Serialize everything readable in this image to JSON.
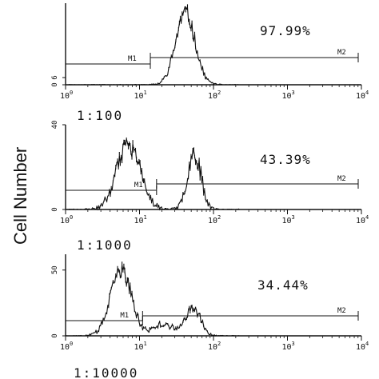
{
  "y_axis_label": "Cell Number",
  "chart_data": [
    {
      "type": "histogram",
      "xscale": "log",
      "xlim": [
        1,
        10000
      ],
      "x_ticks": [
        {
          "base": "10",
          "exp": "0"
        },
        {
          "base": "10",
          "exp": "1"
        },
        {
          "base": "10",
          "exp": "2"
        },
        {
          "base": "10",
          "exp": "3"
        },
        {
          "base": "10",
          "exp": "4"
        }
      ],
      "y_ticks": [
        "0",
        "6"
      ],
      "ylim": [
        0,
        68
      ],
      "dilution_label": "",
      "percent_label": "97.99%",
      "markers": [
        {
          "name": "M1",
          "x_start": 1,
          "x_end": 14
        },
        {
          "name": "M2",
          "x_start": 14,
          "x_end": 10000
        }
      ],
      "peaks": [
        {
          "log_center": 1.62,
          "log_width": 0.13,
          "height": 60
        }
      ],
      "noise_seed": 11
    },
    {
      "type": "histogram",
      "xscale": "log",
      "xlim": [
        1,
        10000
      ],
      "x_ticks": [
        {
          "base": "10",
          "exp": "0"
        },
        {
          "base": "10",
          "exp": "1"
        },
        {
          "base": "10",
          "exp": "2"
        },
        {
          "base": "10",
          "exp": "3"
        },
        {
          "base": "10",
          "exp": "4"
        }
      ],
      "y_ticks": [
        "0",
        "40"
      ],
      "ylim": [
        0,
        40
      ],
      "dilution_label": "1:100",
      "percent_label": "43.39%",
      "markers": [
        {
          "name": "M1",
          "x_start": 1,
          "x_end": 17
        },
        {
          "name": "M2",
          "x_start": 17,
          "x_end": 10000
        }
      ],
      "peaks": [
        {
          "log_center": 0.85,
          "log_width": 0.16,
          "height": 30
        },
        {
          "log_center": 1.74,
          "log_width": 0.09,
          "height": 27
        }
      ],
      "noise_seed": 23
    },
    {
      "type": "histogram",
      "xscale": "log",
      "xlim": [
        1,
        10000
      ],
      "x_ticks": [
        {
          "base": "10",
          "exp": "0"
        },
        {
          "base": "10",
          "exp": "1"
        },
        {
          "base": "10",
          "exp": "2"
        },
        {
          "base": "10",
          "exp": "3"
        },
        {
          "base": "10",
          "exp": "4"
        }
      ],
      "y_ticks": [
        "0",
        "50"
      ],
      "ylim": [
        0,
        62
      ],
      "dilution_label": "1:1000",
      "percent_label": "34.44%",
      "markers": [
        {
          "name": "M1",
          "x_start": 1,
          "x_end": 11
        },
        {
          "name": "M2",
          "x_start": 11,
          "x_end": 10000
        }
      ],
      "peaks": [
        {
          "log_center": 0.75,
          "log_width": 0.14,
          "height": 50
        },
        {
          "log_center": 1.32,
          "log_width": 0.13,
          "height": 9
        },
        {
          "log_center": 1.72,
          "log_width": 0.1,
          "height": 22
        }
      ],
      "noise_seed": 37
    }
  ],
  "bottom_label": "1:10000"
}
